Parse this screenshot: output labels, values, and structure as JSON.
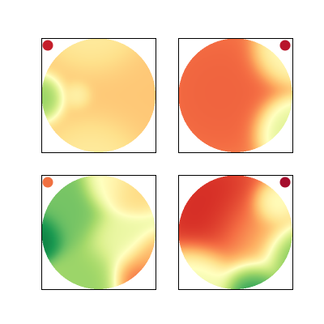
{
  "chart_data": {
    "type": "heatmap",
    "title": "",
    "grid": false,
    "legend": "none",
    "colormap": [
      "#a50026",
      "#d73027",
      "#f46d43",
      "#fdae61",
      "#fee08b",
      "#ffffbf",
      "#d9ef8b",
      "#a6d96a",
      "#66bd63",
      "#1a9850",
      "#006837"
    ],
    "panels": [
      {
        "name": "panel-top-left",
        "marker": {
          "corner": "top-left",
          "color": "#c41e2a"
        },
        "fields": [
          {
            "x": -0.95,
            "y": 0.05,
            "value": 0.76,
            "spread": 0.18
          },
          {
            "x": -0.35,
            "y": 0.0,
            "value": 0.5,
            "spread": 0.12
          },
          {
            "x": 0.3,
            "y": 0.0,
            "value": 0.35,
            "spread": 0.6
          },
          {
            "x": 0.0,
            "y": -0.95,
            "value": 0.45,
            "spread": 0.35
          },
          {
            "x": 0.0,
            "y": 0.95,
            "value": 0.45,
            "spread": 0.35
          }
        ],
        "base": 0.36
      },
      {
        "name": "panel-top-right",
        "marker": {
          "corner": "top-right",
          "color": "#b8152a"
        },
        "fields": [
          {
            "x": -0.25,
            "y": -0.05,
            "value": 0.18,
            "spread": 0.55
          },
          {
            "x": 0.85,
            "y": 0.55,
            "value": 0.6,
            "spread": 0.25
          },
          {
            "x": 0.8,
            "y": -0.7,
            "value": 0.5,
            "spread": 0.25
          }
        ],
        "base": 0.45
      },
      {
        "name": "panel-bottom-left",
        "marker": {
          "corner": "top-left",
          "color": "#f07040"
        },
        "fields": [
          {
            "x": -1.0,
            "y": 0.05,
            "value": 0.98,
            "spread": 0.2
          },
          {
            "x": -0.55,
            "y": -0.35,
            "value": 0.78,
            "spread": 0.35
          },
          {
            "x": -0.15,
            "y": 0.8,
            "value": 0.72,
            "spread": 0.3
          },
          {
            "x": 0.2,
            "y": -0.8,
            "value": 0.48,
            "spread": 0.22
          },
          {
            "x": 0.55,
            "y": -0.7,
            "value": 0.38,
            "spread": 0.22
          },
          {
            "x": 0.7,
            "y": 0.8,
            "value": 0.18,
            "spread": 0.25
          },
          {
            "x": 0.95,
            "y": 0.45,
            "value": 0.3,
            "spread": 0.2
          },
          {
            "x": 0.4,
            "y": 0.15,
            "value": 0.55,
            "spread": 0.3
          }
        ],
        "base": 0.58
      },
      {
        "name": "panel-bottom-right",
        "marker": {
          "corner": "top-right",
          "color": "#a50d2c"
        },
        "fields": [
          {
            "x": -0.3,
            "y": -0.25,
            "value": 0.08,
            "spread": 0.45
          },
          {
            "x": 0.35,
            "y": 0.1,
            "value": 0.32,
            "spread": 0.4
          },
          {
            "x": 0.3,
            "y": 0.95,
            "value": 0.92,
            "spread": 0.25
          },
          {
            "x": 0.95,
            "y": 0.4,
            "value": 0.85,
            "spread": 0.25
          },
          {
            "x": 0.65,
            "y": -0.45,
            "value": 0.55,
            "spread": 0.18
          },
          {
            "x": -0.6,
            "y": 0.8,
            "value": 0.55,
            "spread": 0.3
          }
        ],
        "base": 0.5
      }
    ]
  }
}
